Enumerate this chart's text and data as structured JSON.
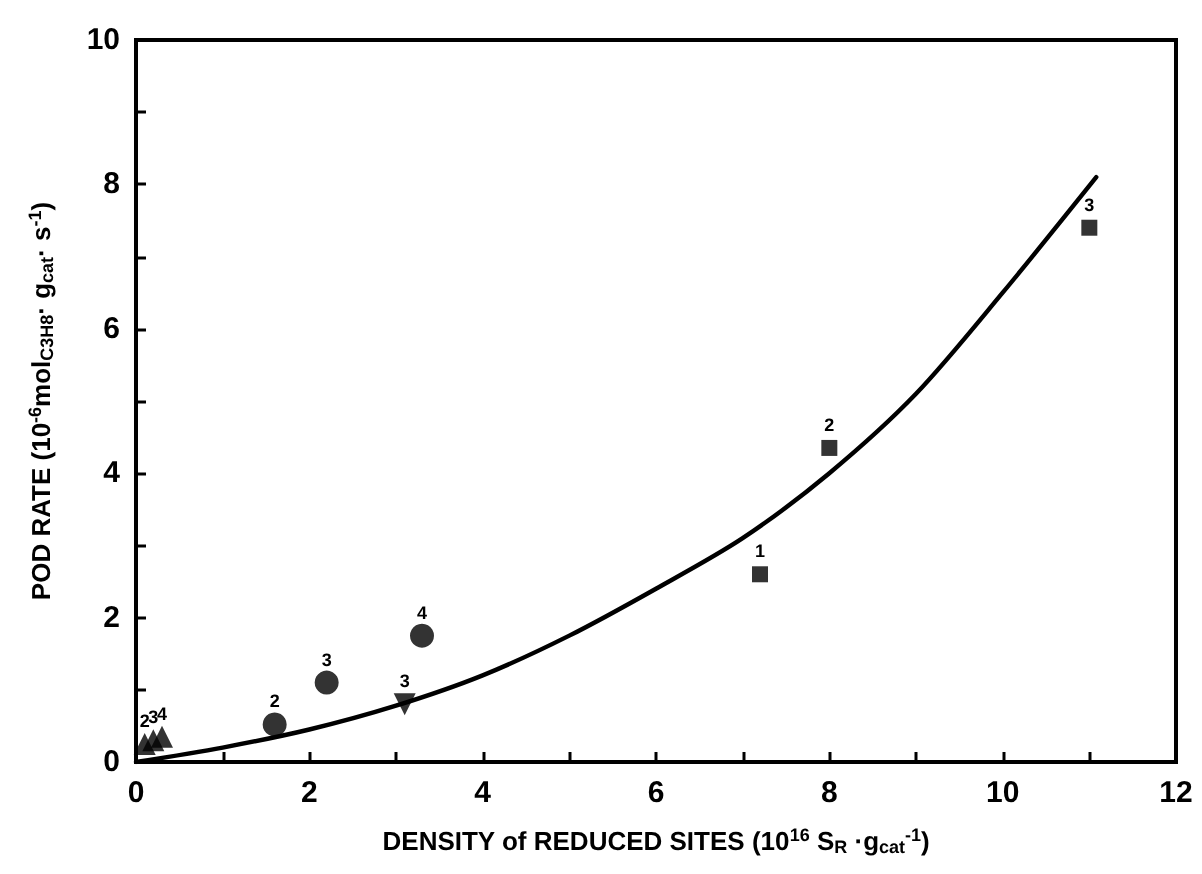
{
  "chart_data": {
    "type": "scatter",
    "xlabel": "DENSITY of REDUCED SITES (10$^{16}$ S$_{R}$ ·g$_{cat}$$^{-1}$)",
    "ylabel": "POD RATE (10$^{-6}$mol$_{C3H8}$· g$_{cat}$· s$^{-1}$)",
    "xlim": [
      0,
      12
    ],
    "xticks": [
      0,
      {
        "value": 1,
        "label": null
      },
      2,
      {
        "value": 3,
        "label": null
      },
      4,
      {
        "value": 5,
        "label": null
      },
      6,
      {
        "value": 7,
        "label": null
      },
      8,
      {
        "value": 9,
        "label": null
      },
      10,
      {
        "value": 11,
        "label": null
      },
      12
    ],
    "ylim": [
      0,
      10
    ],
    "yticks": [
      0,
      {
        "value": 1,
        "label": null
      },
      2,
      {
        "value": 3,
        "label": null
      },
      4,
      {
        "value": 5,
        "label": null
      },
      6,
      {
        "value": 7,
        "label": null
      },
      8,
      {
        "value": 9,
        "label": null
      },
      10
    ],
    "grid": false,
    "annotations": [
      {
        "text": "2",
        "x": 0.1,
        "y": 0.25
      },
      {
        "text": "3",
        "x": 0.2,
        "y": 0.3
      },
      {
        "text": "4",
        "x": 0.3,
        "y": 0.35
      },
      {
        "text": "2",
        "x": 1.6,
        "y": 0.52
      },
      {
        "text": "3",
        "x": 2.2,
        "y": 1.1
      },
      {
        "text": "4",
        "x": 3.3,
        "y": 1.75
      },
      {
        "text": "3",
        "x": 3.1,
        "y": 0.8
      },
      {
        "text": "1",
        "x": 7.2,
        "y": 2.6
      },
      {
        "text": "2",
        "x": 8.0,
        "y": 4.35
      },
      {
        "text": "3",
        "x": 11.0,
        "y": 7.4
      }
    ],
    "series": [
      {
        "color": "#000000",
        "marker": "triangle",
        "x": [
          0.1,
          0.2,
          0.3
        ],
        "values": [
          0.25,
          0.3,
          0.35
        ]
      },
      {
        "color": "#000000",
        "marker": "circle",
        "x": [
          1.6,
          2.2,
          3.3
        ],
        "values": [
          0.52,
          1.1,
          1.75
        ]
      },
      {
        "color": "#000000",
        "marker": "triangle-down",
        "x": [
          3.1
        ],
        "values": [
          0.8
        ]
      },
      {
        "color": "#000000",
        "marker": "square",
        "x": [
          7.2,
          8.0,
          11.0
        ],
        "values": [
          2.6,
          4.35,
          7.4
        ]
      },
      {
        "type": "line",
        "color": "#000000",
        "marker": "none",
        "line_style": "solid",
        "x": [
          0,
          1,
          2,
          3,
          4,
          5,
          6,
          7,
          8,
          9,
          10,
          11.08
        ],
        "values": [
          0,
          0.2,
          0.45,
          0.78,
          1.2,
          1.75,
          2.4,
          3.1,
          4.0,
          5.1,
          6.5,
          8.1
        ]
      }
    ]
  }
}
